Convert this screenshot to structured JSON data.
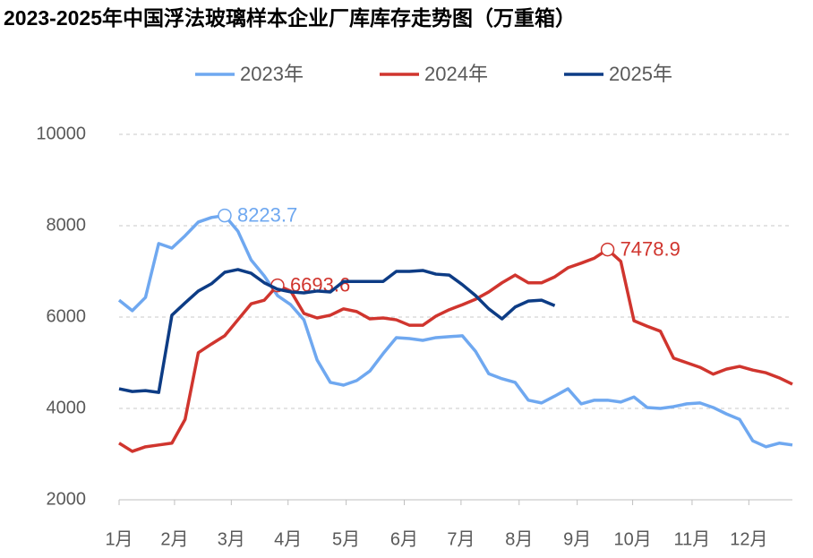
{
  "chart_data": {
    "type": "line",
    "title": "2023-2025年中国浮法玻璃样本企业厂库库存走势图（万重箱）",
    "x": [
      1,
      2,
      3,
      4,
      5,
      6,
      7,
      8,
      9,
      10,
      11,
      12,
      13,
      14,
      15,
      16,
      17,
      18,
      19,
      20,
      21,
      22,
      23,
      24,
      25,
      26,
      27,
      28,
      29,
      30,
      31,
      32,
      33,
      34,
      35,
      36,
      37,
      38,
      39,
      40,
      41,
      42,
      43,
      44,
      45,
      46,
      47,
      48,
      49,
      50,
      51,
      52
    ],
    "xlim": [
      1,
      52
    ],
    "xticks": [
      {
        "value": 1,
        "label": "1月"
      },
      {
        "value": 5.2,
        "label": "2月"
      },
      {
        "value": 9.5,
        "label": "3月"
      },
      {
        "value": 13.8,
        "label": "4月"
      },
      {
        "value": 18.2,
        "label": "5月"
      },
      {
        "value": 22.6,
        "label": "6月"
      },
      {
        "value": 26.9,
        "label": "7月"
      },
      {
        "value": 31.3,
        "label": "8月"
      },
      {
        "value": 35.7,
        "label": "9月"
      },
      {
        "value": 39.9,
        "label": "10月"
      },
      {
        "value": 44.4,
        "label": "11月"
      },
      {
        "value": 48.7,
        "label": "12月"
      }
    ],
    "ylim": [
      2000,
      10000
    ],
    "yticks": [
      2000,
      4000,
      6000,
      8000,
      10000
    ],
    "grid": true,
    "legend": "top",
    "series": [
      {
        "name": "2023年",
        "color": "#6fa8f0",
        "values": [
          6370,
          6140,
          6430,
          7610,
          7510,
          7780,
          8080,
          8180,
          8223.7,
          7880,
          7250,
          6900,
          6470,
          6270,
          5940,
          5060,
          4570,
          4510,
          4610,
          4820,
          5200,
          5550,
          5530,
          5490,
          5550,
          5570,
          5590,
          5250,
          4760,
          4650,
          4570,
          4180,
          4120,
          4270,
          4430,
          4100,
          4180,
          4180,
          4140,
          4250,
          4020,
          4000,
          4040,
          4100,
          4120,
          4020,
          3880,
          3760,
          3290,
          3160,
          3240,
          3200
        ],
        "value_labels": [
          null,
          null,
          null,
          null,
          null,
          null,
          null,
          null,
          "8223.7",
          null,
          null,
          null,
          null,
          null,
          null,
          null,
          null,
          null,
          null,
          null,
          null,
          null,
          null,
          null,
          null,
          null,
          null,
          null,
          null,
          null,
          null,
          null,
          null,
          null,
          null,
          null,
          null,
          null,
          null,
          null,
          null,
          null,
          null,
          null,
          null,
          null,
          null,
          null,
          null,
          null,
          null,
          null
        ]
      },
      {
        "name": "2024年",
        "color": "#d0352e",
        "values": [
          3240,
          3060,
          3160,
          3200,
          3240,
          3760,
          5220,
          5410,
          5590,
          5940,
          6290,
          6370,
          6693.6,
          6570,
          6080,
          5980,
          6040,
          6180,
          6120,
          5960,
          5980,
          5940,
          5820,
          5820,
          6020,
          6160,
          6270,
          6390,
          6550,
          6750,
          6920,
          6750,
          6750,
          6880,
          7080,
          7180,
          7290,
          7478.9,
          7220,
          5920,
          5800,
          5690,
          5100,
          5000,
          4900,
          4750,
          4860,
          4920,
          4840,
          4780,
          4670,
          4530
        ],
        "value_labels": [
          null,
          null,
          null,
          null,
          null,
          null,
          null,
          null,
          null,
          null,
          null,
          null,
          "6693.6",
          null,
          null,
          null,
          null,
          null,
          null,
          null,
          null,
          null,
          null,
          null,
          null,
          null,
          null,
          null,
          null,
          null,
          null,
          null,
          null,
          null,
          null,
          null,
          null,
          "7478.9",
          null,
          null,
          null,
          null,
          null,
          null,
          null,
          null,
          null,
          null,
          null,
          null,
          null,
          null
        ]
      },
      {
        "name": "2025年",
        "color": "#0d3c85",
        "values": [
          4430,
          4370,
          4390,
          4350,
          6040,
          6310,
          6570,
          6730,
          6980,
          7040,
          6960,
          6750,
          6610,
          6550,
          6530,
          6570,
          6550,
          6780,
          6780,
          6780,
          6780,
          7000,
          7000,
          7020,
          6940,
          6920,
          6710,
          6470,
          6180,
          5960,
          6220,
          6350,
          6370,
          6250,
          null,
          null,
          null,
          null,
          null,
          null,
          null,
          null,
          null,
          null,
          null,
          null,
          null,
          null,
          null,
          null,
          null,
          null
        ]
      }
    ]
  }
}
